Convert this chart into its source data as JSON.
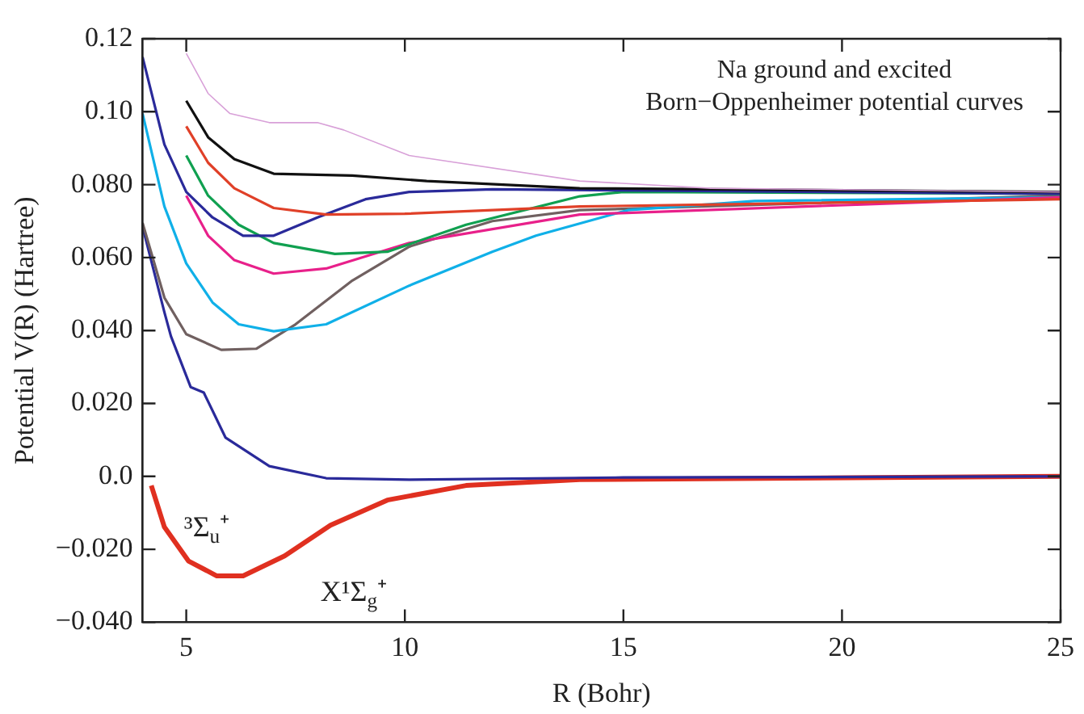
{
  "chart_data": {
    "type": "line",
    "title": "Na ground and excited\nBorn−Oppenheimer potential curves",
    "xlabel": "R (Bohr)",
    "ylabel": "Potential V(R) (Hartree)",
    "xlim": [
      4,
      25
    ],
    "xticks": [
      5,
      10,
      15,
      20,
      25
    ],
    "ylim": [
      -0.04,
      0.12
    ],
    "yticks": [
      {
        "value": -0.04,
        "label": "−0.040"
      },
      {
        "value": -0.02,
        "label": "−0.020"
      },
      {
        "value": 0,
        "label": "0.0"
      },
      {
        "value": 0.02,
        "label": "0.020"
      },
      {
        "value": 0.04,
        "label": "0.040"
      },
      {
        "value": 0.06,
        "label": "0.060"
      },
      {
        "value": 0.08,
        "label": "0.080"
      },
      {
        "value": 0.1,
        "label": "0.10"
      },
      {
        "value": 0.12,
        "label": "0.12"
      }
    ],
    "grid": false,
    "legend": false,
    "marker": "none",
    "line_style": "solid",
    "series": [
      {
        "color": "#d8a0d8",
        "x": [
          5,
          5.5,
          6,
          6.9,
          8,
          8.6,
          10.1,
          14,
          17,
          25
        ],
        "values": [
          0.116,
          0.105,
          0.0995,
          0.097,
          0.097,
          0.095,
          0.088,
          0.081,
          0.079,
          0.078
        ]
      },
      {
        "color": "#111111",
        "x": [
          5,
          5.5,
          6.1,
          7,
          8.8,
          10.5,
          14,
          25
        ],
        "values": [
          0.103,
          0.093,
          0.087,
          0.083,
          0.0825,
          0.081,
          0.079,
          0.078
        ]
      },
      {
        "color": "#e04028",
        "x": [
          5,
          5.5,
          6.1,
          7,
          8.2,
          10,
          14,
          25
        ],
        "values": [
          0.096,
          0.086,
          0.079,
          0.0736,
          0.0718,
          0.072,
          0.074,
          0.076
        ]
      },
      {
        "color": "#2a2a9a",
        "x": [
          4,
          4.5,
          5,
          5.6,
          6.3,
          7,
          8,
          9.1,
          10.1,
          12,
          25
        ],
        "values": [
          0.115,
          0.091,
          0.078,
          0.071,
          0.066,
          0.066,
          0.071,
          0.076,
          0.078,
          0.0787,
          0.0775
        ]
      },
      {
        "color": "#10a050",
        "x": [
          5,
          5.5,
          6.2,
          7,
          8.4,
          9.6,
          11.4,
          14,
          15,
          25
        ],
        "values": [
          0.088,
          0.077,
          0.069,
          0.064,
          0.061,
          0.0616,
          0.069,
          0.0768,
          0.078,
          0.0775
        ]
      },
      {
        "color": "#e8208a",
        "x": [
          5,
          5.5,
          6.1,
          7,
          8.2,
          10.1,
          14,
          25
        ],
        "values": [
          0.077,
          0.066,
          0.0593,
          0.0556,
          0.057,
          0.064,
          0.0718,
          0.0765
        ]
      },
      {
        "color": "#10b0e8",
        "x": [
          4,
          4.5,
          5,
          5.6,
          6.2,
          7,
          8.2,
          10.1,
          12,
          13,
          15.1,
          18,
          25
        ],
        "values": [
          0.0995,
          0.074,
          0.0584,
          0.0477,
          0.0417,
          0.0398,
          0.0417,
          0.0523,
          0.0616,
          0.066,
          0.073,
          0.0755,
          0.0765
        ]
      },
      {
        "color": "#706060",
        "x": [
          4,
          4.5,
          5,
          5.8,
          6.6,
          7.5,
          8.8,
          10.1,
          12,
          14,
          25
        ],
        "values": [
          0.0695,
          0.049,
          0.039,
          0.0347,
          0.035,
          0.0417,
          0.0537,
          0.063,
          0.07,
          0.073,
          0.077
        ]
      },
      {
        "color": "#2a2a9a",
        "x": [
          4,
          4.5,
          4.65,
          5.1,
          5.4,
          5.9,
          6.9,
          8.2,
          10.1,
          15,
          25
        ],
        "values": [
          0.0685,
          0.045,
          0.0384,
          0.0245,
          0.023,
          0.0106,
          0.0028,
          -0.0005,
          -0.0009,
          -0.0003,
          0
        ]
      },
      {
        "color": "#e03020",
        "x": [
          4.2,
          4.5,
          5.05,
          5.7,
          6.3,
          7.25,
          8.3,
          9.6,
          11.4,
          14,
          25
        ],
        "values": [
          -0.0025,
          -0.0139,
          -0.0232,
          -0.0273,
          -0.0273,
          -0.0218,
          -0.0134,
          -0.0065,
          -0.0025,
          -0.0009,
          0
        ]
      }
    ],
    "annotations": [
      "³Σ$_{u}$⁺",
      "X¹Σ$_{g}$⁺"
    ]
  }
}
